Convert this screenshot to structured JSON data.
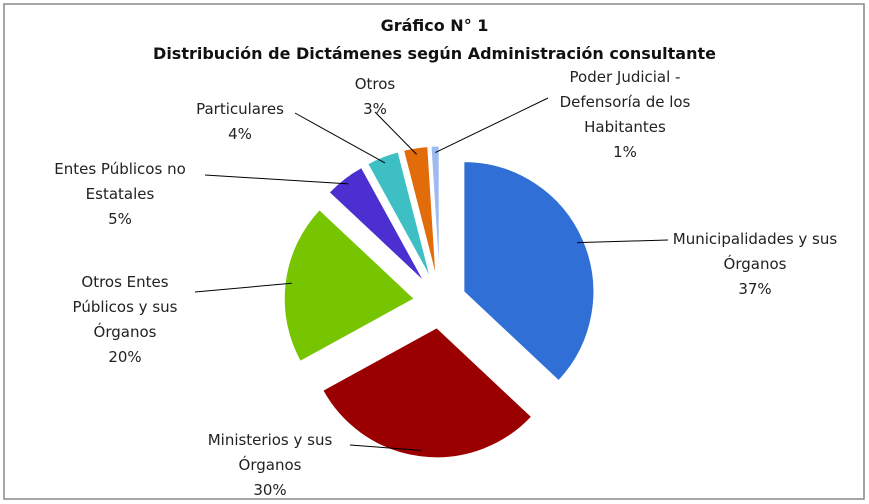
{
  "chart_data": {
    "type": "pie",
    "title": "Gráfico N° 1",
    "subtitle": "Distribución de Dictámenes según Administración consultante",
    "categories": [
      "Municipalidades y sus Órganos",
      "Ministerios y sus Órganos",
      "Otros Entes Públicos y sus Órganos",
      "Entes Públicos no Estatales",
      "Particulares",
      "Otros",
      "Poder Judicial - Defensoría de los Habitantes"
    ],
    "values": [
      37,
      30,
      20,
      5,
      4,
      3,
      1
    ],
    "value_labels": [
      "37%",
      "30%",
      "20%",
      "5%",
      "4%",
      "3%",
      "1%"
    ],
    "colors": [
      "#2f6fd6",
      "#9b0000",
      "#77c400",
      "#4b2fd0",
      "#3dbfc4",
      "#e36c0a",
      "#9dbbf0"
    ]
  }
}
